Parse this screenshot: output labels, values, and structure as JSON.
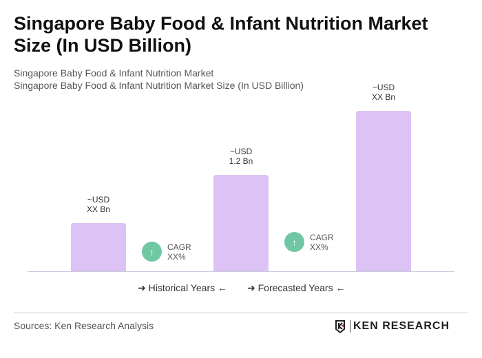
{
  "title": "Singapore Baby Food & Infant Nutrition Market Size (In USD Billion)",
  "subtitle1": "Singapore Baby Food & Infant Nutrition Market",
  "subtitle2": "Singapore Baby Food & Infant Nutrition Market Size (In USD Billion)",
  "chart_data": {
    "type": "bar",
    "values": [
      0.6,
      1.2,
      2.0
    ],
    "labels": [
      {
        "l1": "~USD",
        "l2": "XX Bn"
      },
      {
        "l1": "~USD",
        "l2": "1.2 Bn"
      },
      {
        "l1": "~USD",
        "l2": "XX Bn"
      }
    ],
    "cagr": [
      {
        "l1": "CAGR",
        "l2": "XX%"
      },
      {
        "l1": "CAGR",
        "l2": "XX%"
      }
    ],
    "legend": {
      "historical": "Historical Years",
      "forecasted": "Forecasted Years"
    },
    "bar_color": "#dcc2f5",
    "cagr_color": "#6fc7a3"
  },
  "footer": {
    "sources": "Sources: Ken Research Analysis",
    "logo": "KEN RESEARCH"
  }
}
